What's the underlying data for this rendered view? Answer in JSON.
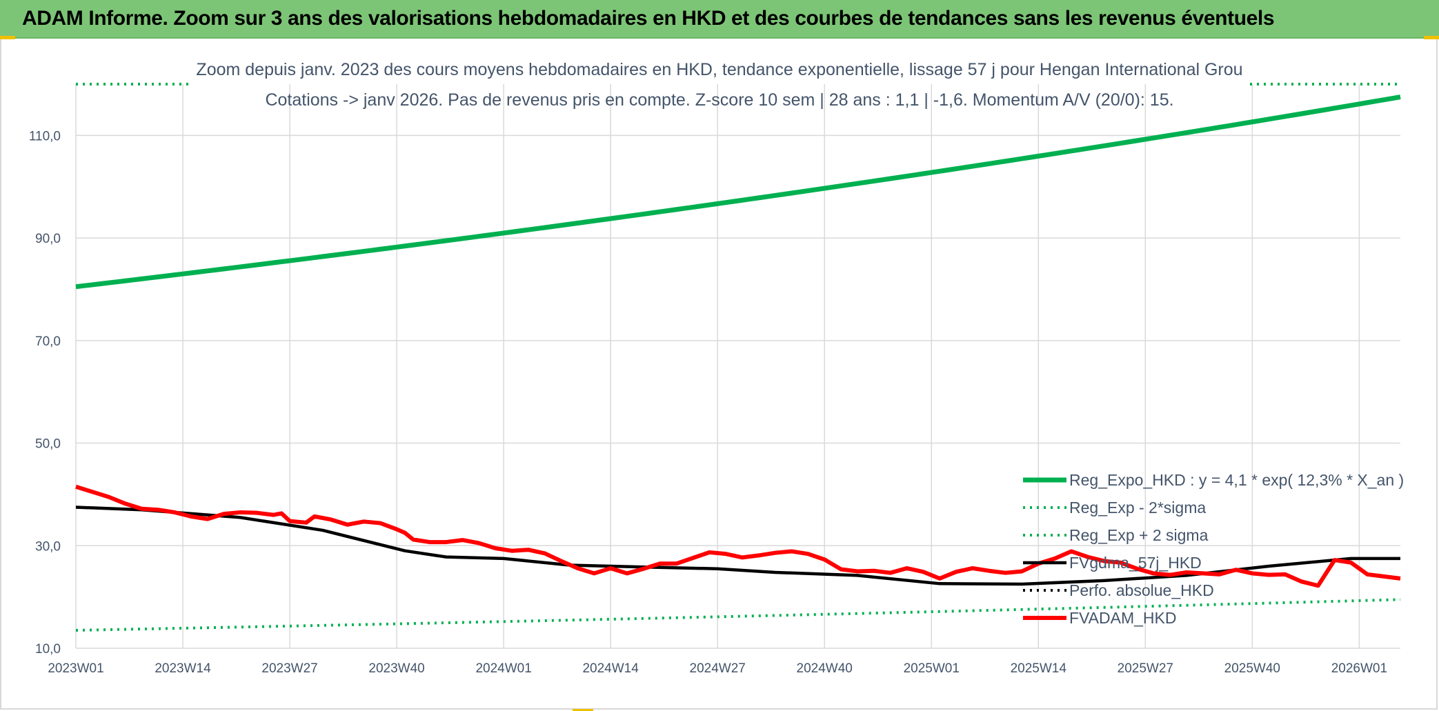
{
  "header": {
    "title": "ADAM Informe. Zoom sur 3 ans des valorisations hebdomadaires en HKD et des courbes de tendances sans les revenus éventuels"
  },
  "colors": {
    "header_bg": "#7cc576",
    "reg_expo": "#00b050",
    "fvadam": "#ff0000",
    "fvgdma": "#000000",
    "grid": "#d9d9d9",
    "text": "#44546a"
  },
  "chart_data": {
    "type": "line",
    "title_line1": "Zoom depuis janv. 2023 des cours moyens hebdomadaires en HKD, tendance exponentielle, lissage 57 j pour Hengan International Grou",
    "title_line2": "Cotations -> janv 2026. Pas de revenus pris en compte. Z-score 10 sem | 28 ans : 1,1 | -1,6. Momentum A/V (20/0): 15.",
    "y_ticks": [
      "10,0",
      "30,0",
      "50,0",
      "70,0",
      "90,0",
      "110,0"
    ],
    "y_tick_values": [
      10,
      30,
      50,
      70,
      90,
      110
    ],
    "ylim": [
      10,
      120
    ],
    "x_ticks": [
      "2023W01",
      "2023W14",
      "2023W27",
      "2023W40",
      "2024W01",
      "2024W14",
      "2024W27",
      "2024W40",
      "2025W01",
      "2025W14",
      "2025W27",
      "2025W40",
      "2026W01"
    ],
    "x_tick_index": [
      0,
      13,
      26,
      39,
      52,
      65,
      78,
      91,
      104,
      117,
      130,
      143,
      156
    ],
    "n_weeks": 162,
    "grid": true,
    "legend_position": "bottom-right",
    "series": [
      {
        "name": "Reg_Expo_HKD : y = 4,1 * exp( 12,3% *  X_an )",
        "style": "solid-thick",
        "color": "#00b050",
        "start": 80.5,
        "end": 117.5
      },
      {
        "name": "Reg_Exp - 2*sigma",
        "style": "dotted",
        "color": "#00b050",
        "start": 13.5,
        "end": 19.5
      },
      {
        "name": "Reg_Exp + 2 sigma",
        "style": "dotted",
        "color": "#00b050",
        "value": 120
      },
      {
        "name": "FVgdma_57j_HKD",
        "style": "solid",
        "color": "#000000",
        "points": [
          [
            0,
            37.5
          ],
          [
            8,
            37
          ],
          [
            20,
            35.5
          ],
          [
            30,
            33
          ],
          [
            40,
            29
          ],
          [
            45,
            27.8
          ],
          [
            52,
            27.5
          ],
          [
            60,
            26.2
          ],
          [
            70,
            25.8
          ],
          [
            78,
            25.5
          ],
          [
            85,
            24.8
          ],
          [
            95,
            24.2
          ],
          [
            105,
            22.6
          ],
          [
            115,
            22.5
          ],
          [
            125,
            23.2
          ],
          [
            135,
            24.2
          ],
          [
            145,
            26
          ],
          [
            155,
            27.5
          ],
          [
            161,
            27.5
          ]
        ]
      },
      {
        "name": "Perfo. absolue_HKD",
        "style": "dotted-hidden",
        "color": "#000000"
      },
      {
        "name": "FVADAM_HKD",
        "style": "solid-thick",
        "color": "#ff0000",
        "points": [
          [
            0,
            41.5
          ],
          [
            2,
            40.5
          ],
          [
            4,
            39.5
          ],
          [
            6,
            38.2
          ],
          [
            8,
            37.2
          ],
          [
            10,
            37
          ],
          [
            12,
            36.5
          ],
          [
            14,
            35.7
          ],
          [
            16,
            35.2
          ],
          [
            18,
            36.2
          ],
          [
            20,
            36.5
          ],
          [
            22,
            36.4
          ],
          [
            24,
            36
          ],
          [
            25,
            36.3
          ],
          [
            26,
            34.8
          ],
          [
            28,
            34.5
          ],
          [
            29,
            35.7
          ],
          [
            31,
            35.1
          ],
          [
            33,
            34.1
          ],
          [
            35,
            34.7
          ],
          [
            37,
            34.4
          ],
          [
            39,
            33.2
          ],
          [
            40,
            32.5
          ],
          [
            41,
            31.2
          ],
          [
            43,
            30.7
          ],
          [
            45,
            30.7
          ],
          [
            47,
            31.1
          ],
          [
            49,
            30.5
          ],
          [
            51,
            29.5
          ],
          [
            53,
            29
          ],
          [
            55,
            29.2
          ],
          [
            57,
            28.5
          ],
          [
            59,
            27
          ],
          [
            61,
            25.6
          ],
          [
            63,
            24.6
          ],
          [
            65,
            25.6
          ],
          [
            67,
            24.6
          ],
          [
            69,
            25.5
          ],
          [
            71,
            26.5
          ],
          [
            73,
            26.5
          ],
          [
            75,
            27.6
          ],
          [
            77,
            28.7
          ],
          [
            79,
            28.4
          ],
          [
            81,
            27.7
          ],
          [
            83,
            28.1
          ],
          [
            85,
            28.6
          ],
          [
            87,
            28.9
          ],
          [
            89,
            28.4
          ],
          [
            91,
            27.3
          ],
          [
            93,
            25.4
          ],
          [
            95,
            25
          ],
          [
            97,
            25.1
          ],
          [
            99,
            24.7
          ],
          [
            101,
            25.6
          ],
          [
            103,
            24.9
          ],
          [
            105,
            23.6
          ],
          [
            107,
            24.9
          ],
          [
            109,
            25.6
          ],
          [
            111,
            25.1
          ],
          [
            113,
            24.7
          ],
          [
            115,
            25
          ],
          [
            117,
            26.5
          ],
          [
            119,
            27.5
          ],
          [
            121,
            28.9
          ],
          [
            123,
            27.8
          ],
          [
            125,
            27
          ],
          [
            127,
            26.7
          ],
          [
            129,
            25.5
          ],
          [
            131,
            24.6
          ],
          [
            133,
            24.3
          ],
          [
            135,
            24.8
          ],
          [
            137,
            24.6
          ],
          [
            139,
            24.4
          ],
          [
            141,
            25.3
          ],
          [
            143,
            24.6
          ],
          [
            145,
            24.3
          ],
          [
            147,
            24.4
          ],
          [
            149,
            23
          ],
          [
            151,
            22.2
          ],
          [
            153,
            27.2
          ],
          [
            155,
            26.7
          ],
          [
            157,
            24.4
          ],
          [
            159,
            24
          ],
          [
            161,
            23.6
          ]
        ]
      }
    ]
  }
}
